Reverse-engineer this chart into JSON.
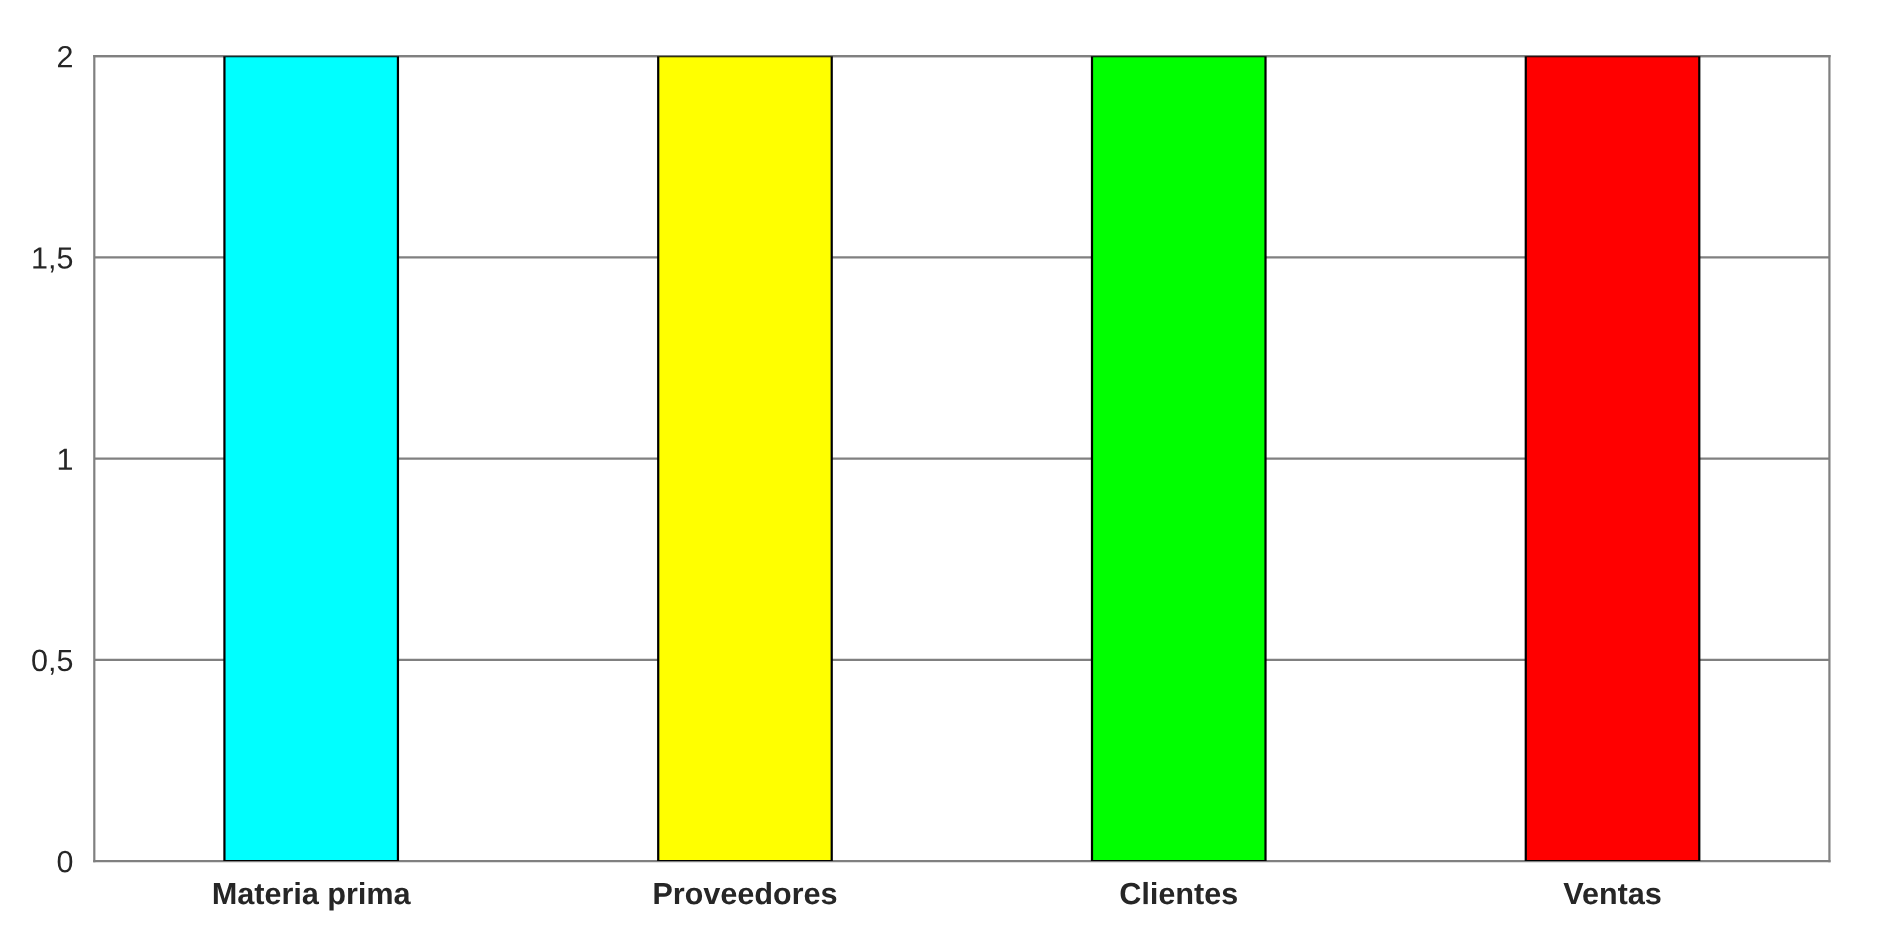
{
  "chart_data": {
    "type": "bar",
    "categories": [
      "Materia prima",
      "Proveedores",
      "Clientes",
      "Ventas"
    ],
    "values": [
      2,
      2,
      2,
      2
    ],
    "colors": [
      "#00ffff",
      "#ffff00",
      "#00ff00",
      "#ff0000"
    ],
    "ylim": [
      0,
      2
    ],
    "yticks": [
      0,
      {
        "value": 0.5,
        "label": "0,5"
      },
      1,
      {
        "value": 1.5,
        "label": "1,5"
      },
      2
    ],
    "grid": "y"
  }
}
